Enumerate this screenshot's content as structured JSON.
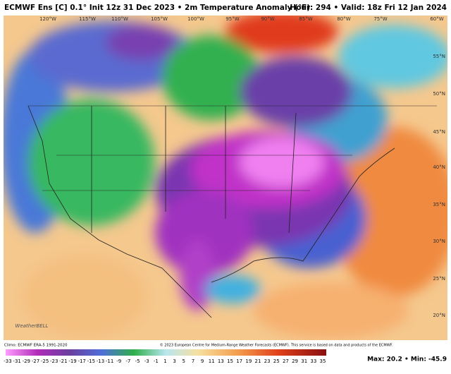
{
  "header": {
    "title": "ECMWF Ens [C] 0.1° Init 12z 31 Dec 2023 • 2m Temperature Anomaly (°F)",
    "valid": "Hour: 294 • Valid: 18z Fri 12 Jan 2024"
  },
  "map": {
    "longitude_labels": [
      "120°W",
      "115°W",
      "110°W",
      "105°W",
      "100°W",
      "95°W",
      "90°W",
      "85°W",
      "80°W",
      "75°W",
      "60°W"
    ],
    "latitude_labels": [
      "55°N",
      "50°N",
      "45°N",
      "40°N",
      "35°N",
      "30°N",
      "25°N",
      "20°N"
    ],
    "logo": "WeatherBELL"
  },
  "footer": {
    "climo": "Climo: ECMWF ERA-5 1991-2020",
    "copyright": "© 2023 European Centre for Medium-Range Weather Forecasts (ECMWF). This service is based on data and products of the ECMWF.",
    "maxmin": "Max: 20.2 • Min: -45.9"
  },
  "colorbar": {
    "ticks": [
      -33,
      -31,
      -29,
      -27,
      -25,
      -23,
      -21,
      -19,
      -17,
      -15,
      -13,
      -11,
      -9,
      -7,
      -5,
      -3,
      -1,
      1,
      3,
      5,
      7,
      9,
      11,
      13,
      15,
      17,
      19,
      21,
      23,
      25,
      27,
      29,
      31,
      33,
      35
    ]
  }
}
